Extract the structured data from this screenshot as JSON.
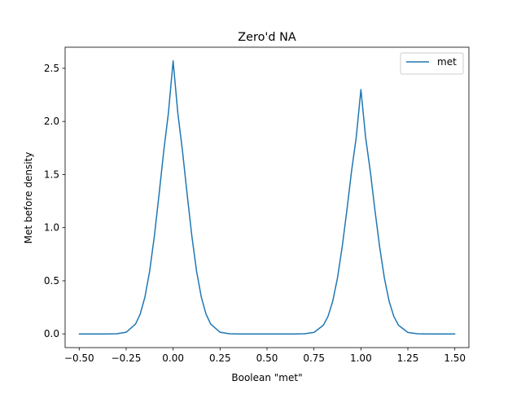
{
  "chart_data": {
    "type": "line",
    "title": "Zero'd NA",
    "xlabel": "Boolean \"met\"",
    "ylabel": "Met before density",
    "xlim": [
      -0.575,
      1.575
    ],
    "ylim": [
      -0.1285,
      2.6985
    ],
    "x_ticks": [
      -0.5,
      -0.25,
      0.0,
      0.25,
      0.5,
      0.75,
      1.0,
      1.25,
      1.5
    ],
    "x_tick_labels": [
      "−0.50",
      "−0.25",
      "0.00",
      "0.25",
      "0.50",
      "0.75",
      "1.00",
      "1.25",
      "1.50"
    ],
    "y_ticks": [
      0.0,
      0.5,
      1.0,
      1.5,
      2.0,
      2.5
    ],
    "y_tick_labels": [
      "0.0",
      "0.5",
      "1.0",
      "1.5",
      "2.0",
      "2.5"
    ],
    "grid": false,
    "legend": "top-right",
    "series": [
      {
        "name": "met",
        "color": "#1f77b4",
        "x": [
          -0.5,
          -0.45,
          -0.4,
          -0.35,
          -0.3,
          -0.25,
          -0.2,
          -0.175,
          -0.15,
          -0.125,
          -0.1,
          -0.075,
          -0.05,
          -0.025,
          0.0,
          0.025,
          0.05,
          0.075,
          0.1,
          0.125,
          0.15,
          0.175,
          0.2,
          0.25,
          0.3,
          0.35,
          0.4,
          0.45,
          0.5,
          0.55,
          0.6,
          0.65,
          0.7,
          0.75,
          0.8,
          0.825,
          0.85,
          0.875,
          0.9,
          0.925,
          0.95,
          0.975,
          1.0,
          1.025,
          1.05,
          1.075,
          1.1,
          1.125,
          1.15,
          1.175,
          1.2,
          1.25,
          1.3,
          1.35,
          1.4,
          1.45,
          1.5
        ],
        "values": [
          0.0,
          0.0,
          0.0,
          0.0,
          0.002,
          0.016,
          0.093,
          0.188,
          0.348,
          0.59,
          0.918,
          1.31,
          1.72,
          2.08,
          2.57,
          2.08,
          1.72,
          1.31,
          0.918,
          0.59,
          0.348,
          0.188,
          0.093,
          0.016,
          0.002,
          0.0,
          0.0,
          0.0,
          0.0,
          0.0,
          0.0,
          0.0,
          0.002,
          0.014,
          0.082,
          0.166,
          0.309,
          0.525,
          0.816,
          1.16,
          1.53,
          1.85,
          2.3,
          1.85,
          1.53,
          1.16,
          0.816,
          0.525,
          0.309,
          0.166,
          0.082,
          0.014,
          0.002,
          0.0,
          0.0,
          0.0,
          0.0
        ]
      }
    ]
  }
}
